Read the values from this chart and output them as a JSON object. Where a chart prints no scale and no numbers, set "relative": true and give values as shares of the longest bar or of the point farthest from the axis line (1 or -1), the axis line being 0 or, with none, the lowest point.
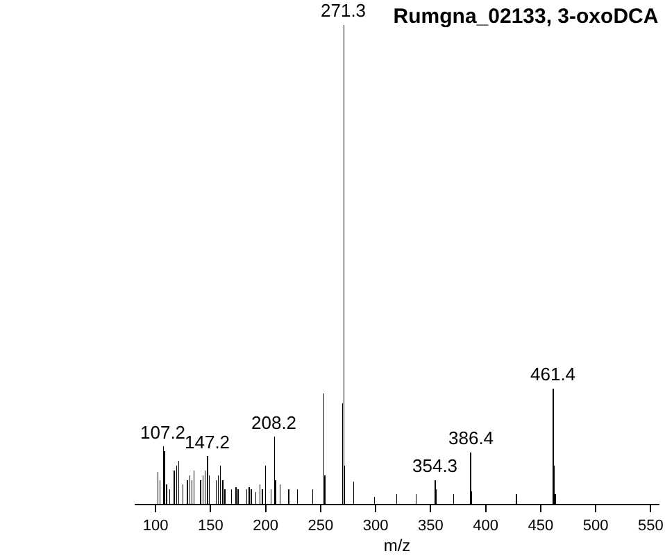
{
  "chart_data": {
    "type": "bar",
    "title": "Rumgna_02133, 3-oxoDCA",
    "xlabel": "m/z",
    "relative": true,
    "color": "#000000",
    "x": [
      102,
      104,
      107.2,
      108,
      110,
      113,
      117,
      119,
      121,
      125,
      129,
      131,
      133,
      135,
      141,
      143,
      145,
      147.2,
      149,
      155,
      157,
      159,
      161,
      163,
      169,
      173,
      175,
      183,
      185,
      187,
      191,
      195,
      197,
      200,
      205,
      208.2,
      209.2,
      213,
      221,
      229,
      243,
      253,
      254,
      270,
      271.3,
      272,
      280,
      299,
      319,
      337,
      354.3,
      355.3,
      371,
      386.4,
      387.4,
      428,
      461.4,
      462.4,
      463.4
    ],
    "values": [
      0.067,
      0.05,
      0.12,
      0.11,
      0.04,
      0.03,
      0.07,
      0.08,
      0.09,
      0.04,
      0.05,
      0.06,
      0.05,
      0.07,
      0.05,
      0.06,
      0.07,
      0.1,
      0.06,
      0.05,
      0.06,
      0.08,
      0.05,
      0.03,
      0.03,
      0.035,
      0.03,
      0.03,
      0.035,
      0.03,
      0.025,
      0.04,
      0.03,
      0.08,
      0.03,
      0.14,
      0.05,
      0.04,
      0.03,
      0.03,
      0.03,
      0.23,
      0.06,
      0.21,
      1,
      0.08,
      0.046,
      0.015,
      0.02,
      0.02,
      0.05,
      0.03,
      0.02,
      0.107,
      0.026,
      0.02,
      0.24,
      0.08,
      0.02
    ],
    "annotations": [
      {
        "text": "107.2",
        "x": 107.2,
        "y": 0.12
      },
      {
        "text": "147.2",
        "x": 147.2,
        "y": 0.1
      },
      {
        "text": "208.2",
        "x": 208.2,
        "y": 0.14
      },
      {
        "text": "271.3",
        "x": 271.3,
        "y": 1
      },
      {
        "text": "354.3",
        "x": 354.3,
        "y": 0.05
      },
      {
        "text": "386.4",
        "x": 386.4,
        "y": 0.107
      },
      {
        "text": "461.4",
        "x": 461.4,
        "y": 0.24
      }
    ],
    "xlim": [
      81,
      558
    ],
    "xticks": [
      100,
      150,
      200,
      250,
      300,
      350,
      400,
      450,
      500,
      550
    ],
    "grid": false,
    "legend": false
  }
}
